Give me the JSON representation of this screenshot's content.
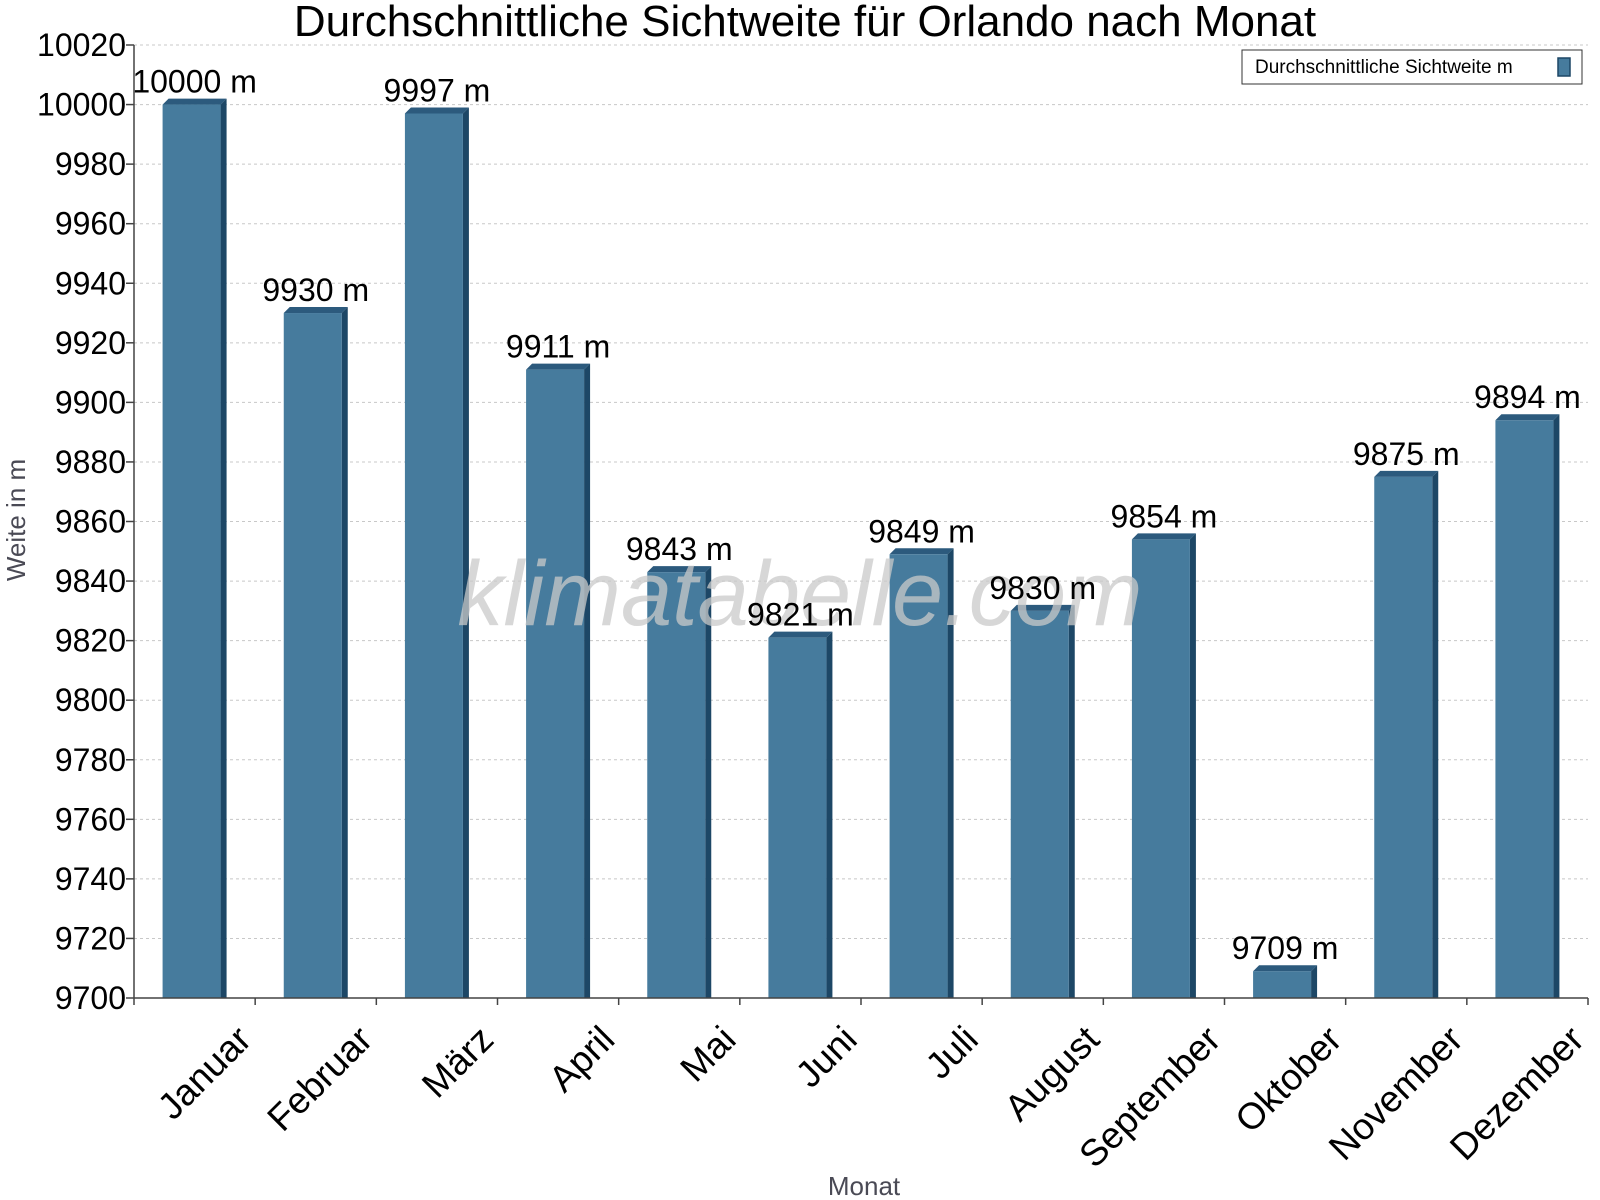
{
  "chart_data": {
    "type": "bar",
    "title": "Durchschnittliche Sichtweite für Orlando nach Monat",
    "xlabel": "Monat",
    "ylabel": "Weite in m",
    "ylim": [
      9700,
      10020
    ],
    "y_ticks": [
      9700,
      9720,
      9740,
      9760,
      9780,
      9800,
      9820,
      9840,
      9860,
      9880,
      9900,
      9920,
      9940,
      9960,
      9980,
      10000,
      10020
    ],
    "categories": [
      "Januar",
      "Februar",
      "März",
      "April",
      "Mai",
      "Juni",
      "Juli",
      "August",
      "September",
      "Oktober",
      "November",
      "Dezember"
    ],
    "series": [
      {
        "name": "Durchschnittliche Sichtweite m",
        "values": [
          10000,
          9930,
          9997,
          9911,
          9843,
          9821,
          9849,
          9830,
          9854,
          9709,
          9875,
          9894
        ],
        "data_labels": [
          "10000 m",
          "9930 m",
          "9997 m",
          "9911 m",
          "9843 m",
          "9821 m",
          "9849 m",
          "9830 m",
          "9854 m",
          "9709 m",
          "9875 m",
          "9894 m"
        ],
        "color": "#467b9d",
        "side_color": "#1d4766",
        "top_color": "#2c5a7d"
      }
    ],
    "grid": true,
    "legend_position": "top-right",
    "watermark": "klimatabelle.com"
  }
}
